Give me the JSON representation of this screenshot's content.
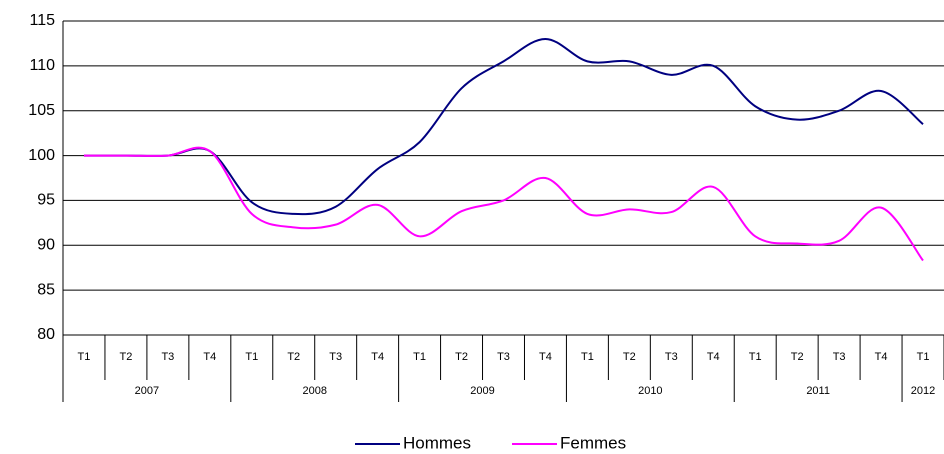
{
  "chart_data": {
    "type": "line",
    "category_groups": [
      {
        "label": "2007",
        "categories": [
          "T1",
          "T2",
          "T3",
          "T4"
        ]
      },
      {
        "label": "2008",
        "categories": [
          "T1",
          "T2",
          "T3",
          "T4"
        ]
      },
      {
        "label": "2009",
        "categories": [
          "T1",
          "T2",
          "T3",
          "T4"
        ]
      },
      {
        "label": "2010",
        "categories": [
          "T1",
          "T2",
          "T3",
          "T4"
        ]
      },
      {
        "label": "2011",
        "categories": [
          "T1",
          "T2",
          "T3",
          "T4"
        ]
      },
      {
        "label": "2012",
        "categories": [
          "T1"
        ]
      }
    ],
    "series": [
      {
        "name": "Hommes",
        "color": "#000080",
        "values": [
          100,
          100,
          100,
          100.5,
          94.8,
          93.5,
          94.3,
          98.5,
          101.5,
          107.5,
          110.5,
          113,
          110.5,
          110.5,
          109,
          110,
          105.5,
          104,
          105,
          107.2,
          103.5
        ]
      },
      {
        "name": "Femmes",
        "color": "#ff00ff",
        "values": [
          100,
          100,
          100,
          100.5,
          93.5,
          92,
          92.3,
          94.5,
          91,
          93.8,
          95,
          97.5,
          93.5,
          94,
          93.7,
          96.5,
          91,
          90.2,
          90.5,
          94.2,
          88.3
        ]
      }
    ],
    "ylim": [
      80,
      115
    ],
    "yticks": [
      80,
      85,
      90,
      95,
      100,
      105,
      110,
      115
    ],
    "grid": true,
    "legend": "bottom"
  }
}
